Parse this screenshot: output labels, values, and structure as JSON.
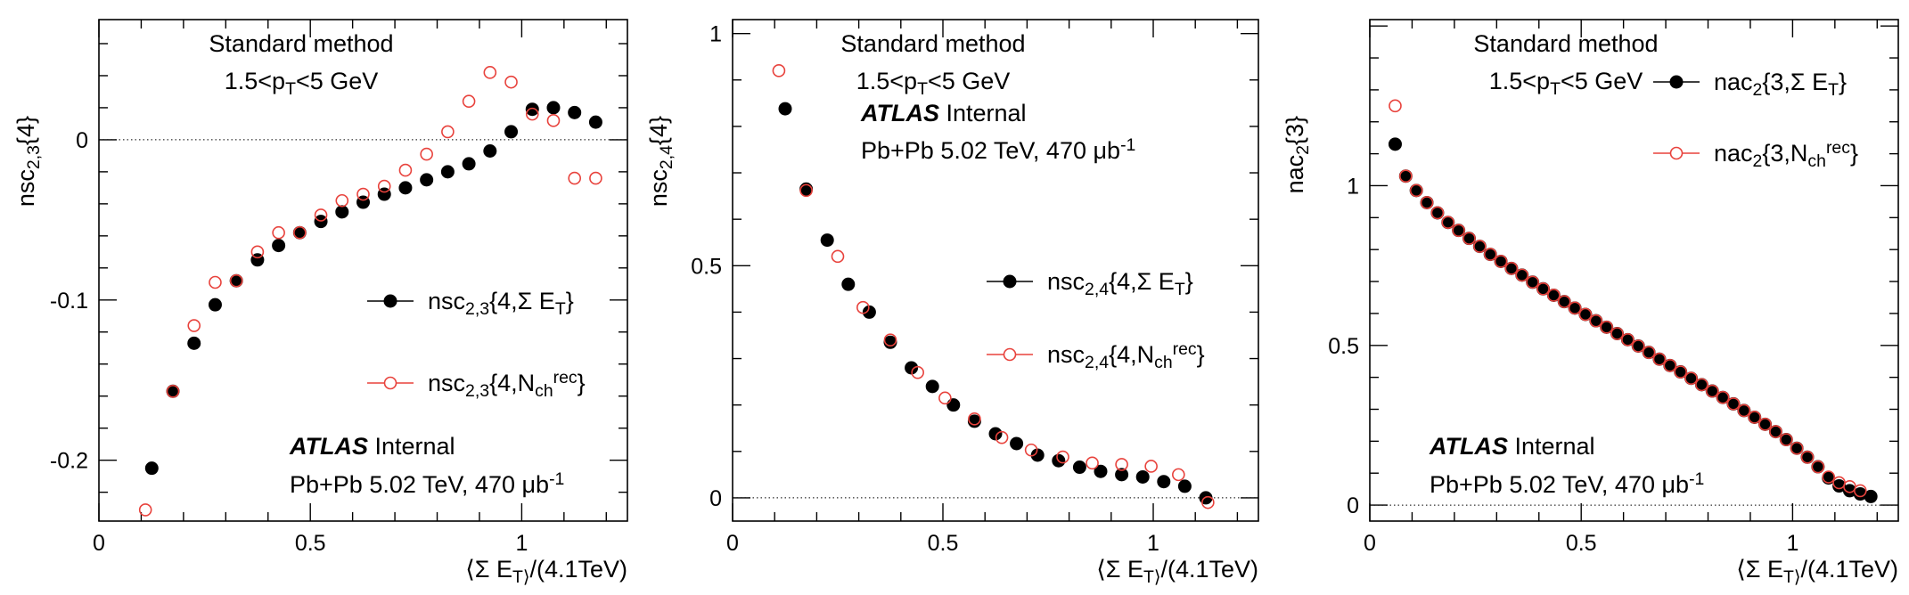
{
  "chart_data": [
    {
      "type": "scatter",
      "xlabel": "⟨Σ E_T⟩/(4.1TeV)",
      "ylabel": "nsc_{2,3}{4}",
      "xlim": [
        0,
        1.25
      ],
      "ylim": [
        -0.238,
        0.075
      ],
      "xticks": [
        {
          "v": 0,
          "label": "0"
        },
        {
          "v": 0.5,
          "label": "0.5"
        },
        {
          "v": 1,
          "label": "1"
        }
      ],
      "yticks": [
        {
          "v": 0,
          "label": "0"
        },
        {
          "v": -0.1,
          "label": "-0.1"
        },
        {
          "v": -0.2,
          "label": "-0.2"
        }
      ],
      "zero_line": true,
      "texts": [
        "Standard method",
        "1.5<p_T<5 GeV"
      ],
      "atlas": {
        "label": "ATLAS",
        "status": "Internal",
        "detail": "Pb+Pb 5.02 TeV, 470 μb^-1"
      },
      "legend": [
        "nsc_{2,3}{4,Σ E_T}",
        "nsc_{2,3}{4,N_ch^rec}"
      ],
      "series": [
        {
          "name": "nsc_{2,3}{4,Σ E_T}",
          "marker": "filled-circle",
          "color": "#000000",
          "x": [
            0.125,
            0.175,
            0.225,
            0.275,
            0.325,
            0.375,
            0.425,
            0.475,
            0.525,
            0.575,
            0.625,
            0.675,
            0.725,
            0.775,
            0.825,
            0.875,
            0.925,
            0.975,
            1.025,
            1.075,
            1.125,
            1.175
          ],
          "y": [
            -0.205,
            -0.157,
            -0.127,
            -0.103,
            -0.088,
            -0.075,
            -0.066,
            -0.058,
            -0.051,
            -0.045,
            -0.039,
            -0.034,
            -0.03,
            -0.025,
            -0.02,
            -0.015,
            -0.007,
            0.005,
            0.019,
            0.02,
            0.017,
            0.011
          ]
        },
        {
          "name": "nsc_{2,3}{4,N_ch^rec}",
          "marker": "open-circle",
          "color": "#e8423c",
          "x": [
            0.11,
            0.175,
            0.225,
            0.275,
            0.325,
            0.375,
            0.425,
            0.475,
            0.525,
            0.575,
            0.625,
            0.675,
            0.725,
            0.775,
            0.825,
            0.875,
            0.925,
            0.975,
            1.025,
            1.075,
            1.125,
            1.175
          ],
          "y": [
            -0.231,
            -0.157,
            -0.116,
            -0.089,
            -0.088,
            -0.07,
            -0.058,
            -0.058,
            -0.047,
            -0.038,
            -0.034,
            -0.029,
            -0.019,
            -0.009,
            0.005,
            0.024,
            0.042,
            0.036,
            0.016,
            0.012,
            -0.024,
            -0.024
          ]
        }
      ]
    },
    {
      "type": "scatter",
      "xlabel": "⟨Σ E_T⟩/(4.1TeV)",
      "ylabel": "nsc_{2,4}{4}",
      "xlim": [
        0,
        1.25
      ],
      "ylim": [
        -0.05,
        1.03
      ],
      "xticks": [
        {
          "v": 0,
          "label": "0"
        },
        {
          "v": 0.5,
          "label": "0.5"
        },
        {
          "v": 1,
          "label": "1"
        }
      ],
      "yticks": [
        {
          "v": 0,
          "label": "0"
        },
        {
          "v": 0.5,
          "label": "0.5"
        },
        {
          "v": 1,
          "label": "1"
        }
      ],
      "zero_line": true,
      "texts": [
        "Standard method",
        "1.5<p_T<5 GeV"
      ],
      "atlas": {
        "label": "ATLAS",
        "status": "Internal",
        "detail": "Pb+Pb 5.02 TeV, 470 μb^-1"
      },
      "legend": [
        "nsc_{2,4}{4,Σ E_T}",
        "nsc_{2,4}{4,N_ch^rec}"
      ],
      "series": [
        {
          "name": "nsc_{2,4}{4,Σ E_T}",
          "marker": "filled-circle",
          "color": "#000000",
          "x": [
            0.125,
            0.175,
            0.225,
            0.275,
            0.325,
            0.375,
            0.425,
            0.475,
            0.525,
            0.575,
            0.625,
            0.675,
            0.725,
            0.775,
            0.825,
            0.875,
            0.925,
            0.975,
            1.025,
            1.075,
            1.125
          ],
          "y": [
            0.838,
            0.665,
            0.555,
            0.46,
            0.4,
            0.335,
            0.28,
            0.24,
            0.2,
            0.165,
            0.138,
            0.117,
            0.092,
            0.08,
            0.066,
            0.057,
            0.05,
            0.045,
            0.035,
            0.025,
            0.0
          ]
        },
        {
          "name": "nsc_{2,4}{4,N_ch^rec}",
          "marker": "open-circle",
          "color": "#e8423c",
          "x": [
            0.11,
            0.175,
            0.25,
            0.31,
            0.375,
            0.44,
            0.505,
            0.575,
            0.64,
            0.71,
            0.785,
            0.855,
            0.925,
            0.995,
            1.06,
            1.13
          ],
          "y": [
            0.92,
            0.662,
            0.52,
            0.41,
            0.34,
            0.27,
            0.215,
            0.17,
            0.13,
            0.103,
            0.088,
            0.075,
            0.072,
            0.068,
            0.05,
            -0.01
          ]
        }
      ]
    },
    {
      "type": "scatter",
      "xlabel": "⟨Σ E_T⟩/(4.1TeV)",
      "ylabel": "nac_2{3}",
      "xlim": [
        0,
        1.25
      ],
      "ylim": [
        -0.05,
        1.52
      ],
      "xticks": [
        {
          "v": 0,
          "label": "0"
        },
        {
          "v": 0.5,
          "label": "0.5"
        },
        {
          "v": 1,
          "label": "1"
        }
      ],
      "yticks": [
        {
          "v": 0,
          "label": "0"
        },
        {
          "v": 0.5,
          "label": "0.5"
        },
        {
          "v": 1,
          "label": "1"
        }
      ],
      "zero_line": true,
      "texts": [
        "Standard method",
        "1.5<p_T<5 GeV"
      ],
      "atlas": {
        "label": "ATLAS",
        "status": "Internal",
        "detail": "Pb+Pb 5.02 TeV, 470 μb^-1"
      },
      "legend": [
        "nac_2{3,Σ E_T}",
        "nac_2{3,N_ch^rec}"
      ],
      "series": [
        {
          "name": "nac_2{3,Σ E_T}",
          "marker": "filled-circle",
          "color": "#000000",
          "x": [
            0.06,
            0.085,
            0.11,
            0.135,
            0.16,
            0.185,
            0.21,
            0.235,
            0.26,
            0.285,
            0.31,
            0.335,
            0.36,
            0.385,
            0.41,
            0.435,
            0.46,
            0.485,
            0.51,
            0.535,
            0.56,
            0.585,
            0.61,
            0.635,
            0.66,
            0.685,
            0.71,
            0.735,
            0.76,
            0.785,
            0.81,
            0.835,
            0.86,
            0.885,
            0.91,
            0.935,
            0.96,
            0.985,
            1.01,
            1.035,
            1.06,
            1.085,
            1.11,
            1.135,
            1.16,
            1.185
          ],
          "y": [
            1.13,
            1.03,
            0.985,
            0.947,
            0.915,
            0.885,
            0.86,
            0.835,
            0.81,
            0.785,
            0.763,
            0.741,
            0.72,
            0.698,
            0.677,
            0.657,
            0.637,
            0.617,
            0.597,
            0.577,
            0.557,
            0.537,
            0.518,
            0.498,
            0.478,
            0.457,
            0.437,
            0.417,
            0.397,
            0.377,
            0.357,
            0.337,
            0.317,
            0.296,
            0.275,
            0.253,
            0.23,
            0.205,
            0.178,
            0.15,
            0.12,
            0.085,
            0.06,
            0.045,
            0.035,
            0.027
          ]
        },
        {
          "name": "nac_2{3,N_ch^rec}",
          "marker": "open-circle",
          "color": "#e8423c",
          "x": [
            0.06,
            0.085,
            0.11,
            0.135,
            0.16,
            0.185,
            0.21,
            0.235,
            0.26,
            0.285,
            0.31,
            0.335,
            0.36,
            0.385,
            0.41,
            0.435,
            0.46,
            0.485,
            0.51,
            0.535,
            0.56,
            0.585,
            0.61,
            0.635,
            0.66,
            0.685,
            0.71,
            0.735,
            0.76,
            0.785,
            0.81,
            0.835,
            0.86,
            0.885,
            0.91,
            0.935,
            0.96,
            0.985,
            1.01,
            1.035,
            1.06,
            1.085,
            1.11,
            1.135,
            1.16
          ],
          "y": [
            1.25,
            1.03,
            0.985,
            0.947,
            0.915,
            0.885,
            0.86,
            0.835,
            0.81,
            0.785,
            0.763,
            0.741,
            0.72,
            0.698,
            0.677,
            0.657,
            0.637,
            0.617,
            0.597,
            0.577,
            0.557,
            0.537,
            0.518,
            0.498,
            0.478,
            0.457,
            0.437,
            0.417,
            0.397,
            0.377,
            0.357,
            0.337,
            0.317,
            0.296,
            0.275,
            0.253,
            0.23,
            0.205,
            0.178,
            0.15,
            0.12,
            0.088,
            0.07,
            0.058,
            0.045
          ]
        }
      ]
    }
  ]
}
